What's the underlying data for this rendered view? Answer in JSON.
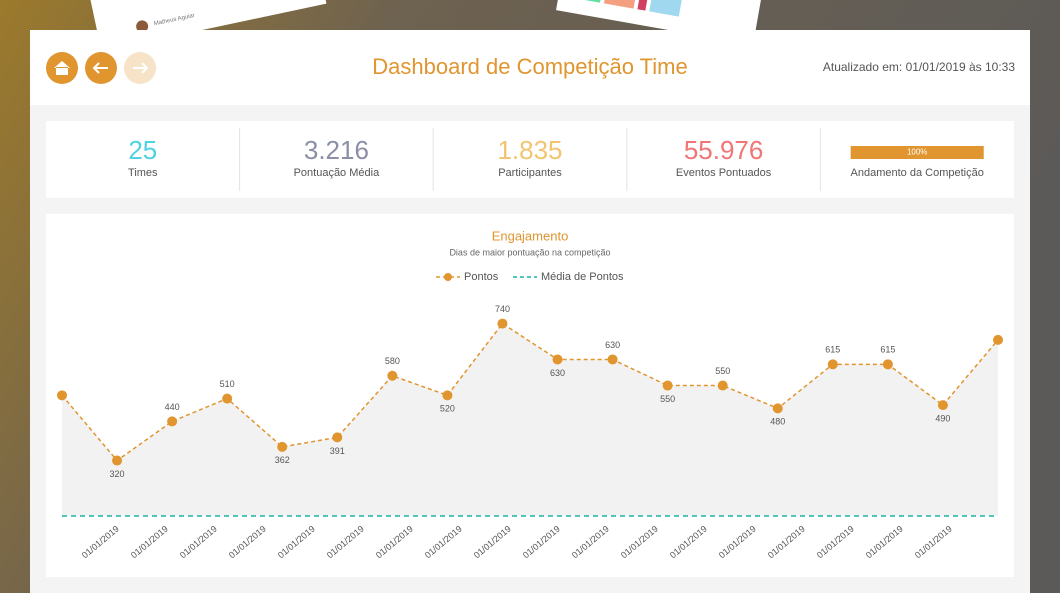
{
  "decor": {
    "user": "Matheus Aguiar"
  },
  "header": {
    "title": "Dashboard de Competição Time",
    "updated": "Atualizado em: 01/01/2019 às 10:33"
  },
  "stats": [
    {
      "value": "25",
      "label": "Times",
      "color": "#4fd1e3"
    },
    {
      "value": "3.216",
      "label": "Pontuação Média",
      "color": "#8b8fa6"
    },
    {
      "value": "1.835",
      "label": "Participantes",
      "color": "#f2c46f"
    },
    {
      "value": "55.976",
      "label": "Eventos Pontuados",
      "color": "#f27575"
    }
  ],
  "progress": {
    "value": 100,
    "label": "100%",
    "caption": "Andamento da Competição",
    "color": "#e0952f"
  },
  "chart_data": {
    "type": "line",
    "title": "Engajamento",
    "subtitle": "Dias de maior pontuação na competição",
    "categories": [
      "01/01/2019",
      "01/01/2019",
      "01/01/2019",
      "01/01/2019",
      "01/01/2019",
      "01/01/2019",
      "01/01/2019",
      "01/01/2019",
      "01/01/2019",
      "01/01/2019",
      "01/01/2019",
      "01/01/2019",
      "01/01/2019",
      "01/01/2019",
      "01/01/2019",
      "01/01/2019",
      "01/01/2019",
      "01/01/2019"
    ],
    "series": [
      {
        "name": "Pontos",
        "color": "#e0952f",
        "values": [
          520,
          320,
          440,
          510,
          362,
          391,
          580,
          520,
          740,
          630,
          630,
          550,
          550,
          480,
          615,
          615,
          490,
          690
        ],
        "value_labels": [
          null,
          "320",
          "440",
          "510",
          "362",
          "391",
          "580",
          "520",
          "740",
          "630",
          "630",
          "550",
          "550",
          "480",
          "615",
          "615",
          "490",
          null
        ]
      },
      {
        "name": "Média de Pontos",
        "color": "#1ab3a6",
        "values": [
          150,
          150,
          150,
          150,
          150,
          150,
          150,
          150,
          150,
          150,
          150,
          150,
          150,
          150,
          150,
          150,
          150,
          150
        ]
      }
    ],
    "ylim": [
      150,
      800
    ]
  }
}
